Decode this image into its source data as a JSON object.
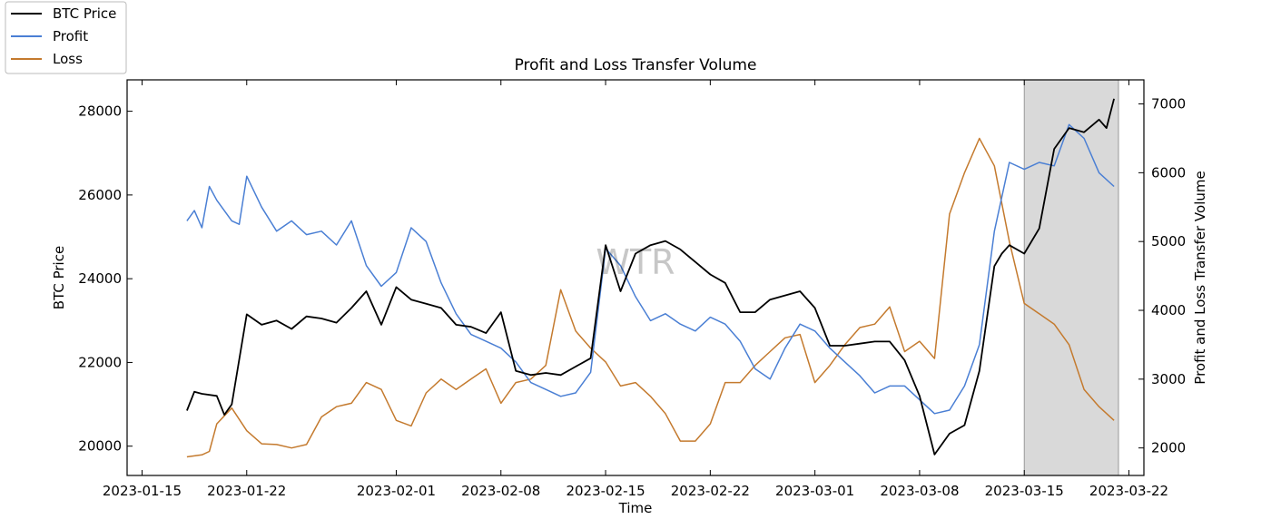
{
  "chart_data": {
    "type": "line",
    "title": "Profit and Loss Transfer Volume",
    "xlabel": "Time",
    "ylabel_left": "BTC Price",
    "ylabel_right": "Profit and Loss Transfer Volume",
    "watermark": "WTR",
    "x_range": [
      "2023-01-14",
      "2023-03-23"
    ],
    "ylim_left": [
      19300,
      28750
    ],
    "ylim_right": [
      1600,
      7350
    ],
    "yticks_left": [
      20000,
      22000,
      24000,
      26000,
      28000
    ],
    "yticks_right": [
      2000,
      3000,
      4000,
      5000,
      6000,
      7000
    ],
    "xticks": [
      "2023-01-15",
      "2023-01-22",
      "2023-02-01",
      "2023-02-08",
      "2023-02-15",
      "2023-02-22",
      "2023-03-01",
      "2023-03-08",
      "2023-03-15",
      "2023-03-22"
    ],
    "highlight_span": {
      "start": "2023-03-15",
      "end": "2023-03-21.3",
      "color": "#d9d9d9"
    },
    "legend_position": "top-left (outside)",
    "series": [
      {
        "name": "BTC Price",
        "axis": "left",
        "color": "#000000",
        "x": [
          "2023-01-18",
          "2023-01-18.5",
          "2023-01-19",
          "2023-01-20",
          "2023-01-20.5",
          "2023-01-21",
          "2023-01-22",
          "2023-01-23",
          "2023-01-24",
          "2023-01-25",
          "2023-01-26",
          "2023-01-27",
          "2023-01-28",
          "2023-01-29",
          "2023-01-30",
          "2023-01-31",
          "2023-02-01",
          "2023-02-02",
          "2023-02-03",
          "2023-02-04",
          "2023-02-05",
          "2023-02-06",
          "2023-02-07",
          "2023-02-08",
          "2023-02-09",
          "2023-02-10",
          "2023-02-11",
          "2023-02-12",
          "2023-02-13",
          "2023-02-14",
          "2023-02-15",
          "2023-02-16",
          "2023-02-17",
          "2023-02-18",
          "2023-02-19",
          "2023-02-20",
          "2023-02-21",
          "2023-02-22",
          "2023-02-23",
          "2023-02-24",
          "2023-02-25",
          "2023-02-26",
          "2023-02-27",
          "2023-02-28",
          "2023-03-01",
          "2023-03-02",
          "2023-03-03",
          "2023-03-04",
          "2023-03-05",
          "2023-03-06",
          "2023-03-07",
          "2023-03-08",
          "2023-03-09",
          "2023-03-10",
          "2023-03-11",
          "2023-03-12",
          "2023-03-13",
          "2023-03-13.5",
          "2023-03-14",
          "2023-03-15",
          "2023-03-16",
          "2023-03-17",
          "2023-03-18",
          "2023-03-19",
          "2023-03-20",
          "2023-03-20.5",
          "2023-03-21"
        ],
        "y": [
          20850,
          21300,
          21250,
          21200,
          20750,
          21000,
          23150,
          22900,
          23000,
          22800,
          23100,
          23050,
          22950,
          23300,
          23700,
          22900,
          23800,
          23500,
          23400,
          23300,
          22900,
          22850,
          22700,
          23200,
          21800,
          21700,
          21750,
          21700,
          21900,
          22100,
          24800,
          23700,
          24600,
          24800,
          24900,
          24700,
          24400,
          24100,
          23900,
          23200,
          23200,
          23500,
          23600,
          23700,
          23300,
          22400,
          22400,
          22450,
          22500,
          22500,
          22050,
          21200,
          19800,
          20300,
          20500,
          21800,
          24300,
          24600,
          24800,
          24600,
          25200,
          27100,
          27600,
          27500,
          27800,
          27600,
          28300
        ]
      },
      {
        "name": "Profit",
        "axis": "right",
        "color": "#4a7fd4",
        "x": [
          "2023-01-18",
          "2023-01-18.5",
          "2023-01-19",
          "2023-01-19.5",
          "2023-01-20",
          "2023-01-21",
          "2023-01-21.5",
          "2023-01-22",
          "2023-01-23",
          "2023-01-24",
          "2023-01-25",
          "2023-01-26",
          "2023-01-27",
          "2023-01-28",
          "2023-01-29",
          "2023-01-30",
          "2023-01-31",
          "2023-02-01",
          "2023-02-02",
          "2023-02-03",
          "2023-02-04",
          "2023-02-05",
          "2023-02-06",
          "2023-02-07",
          "2023-02-08",
          "2023-02-09",
          "2023-02-10",
          "2023-02-11",
          "2023-02-12",
          "2023-02-13",
          "2023-02-14",
          "2023-02-15",
          "2023-02-16",
          "2023-02-17",
          "2023-02-18",
          "2023-02-19",
          "2023-02-20",
          "2023-02-21",
          "2023-02-22",
          "2023-02-23",
          "2023-02-24",
          "2023-02-25",
          "2023-02-26",
          "2023-02-27",
          "2023-02-28",
          "2023-03-01",
          "2023-03-02",
          "2023-03-03",
          "2023-03-04",
          "2023-03-05",
          "2023-03-06",
          "2023-03-07",
          "2023-03-08",
          "2023-03-09",
          "2023-03-10",
          "2023-03-11",
          "2023-03-12",
          "2023-03-13",
          "2023-03-14",
          "2023-03-15",
          "2023-03-16",
          "2023-03-17",
          "2023-03-18",
          "2023-03-19",
          "2023-03-20",
          "2023-03-21"
        ],
        "y": [
          5300,
          5450,
          5200,
          5800,
          5600,
          5300,
          5250,
          5950,
          5500,
          5150,
          5300,
          5100,
          5150,
          4950,
          5300,
          4650,
          4350,
          4550,
          5200,
          5000,
          4400,
          3950,
          3650,
          3550,
          3450,
          3250,
          2950,
          2850,
          2750,
          2800,
          3100,
          4900,
          4650,
          4200,
          3850,
          3950,
          3800,
          3700,
          3900,
          3800,
          3550,
          3150,
          3000,
          3450,
          3800,
          3700,
          3450,
          3250,
          3050,
          2800,
          2900,
          2900,
          2700,
          2500,
          2550,
          2900,
          3500,
          5150,
          6150,
          6050,
          6150,
          6100,
          6700,
          6500,
          6000,
          5800
        ]
      },
      {
        "name": "Loss",
        "axis": "right",
        "color": "#c47a2e",
        "x": [
          "2023-01-18",
          "2023-01-19",
          "2023-01-19.5",
          "2023-01-20",
          "2023-01-21",
          "2023-01-22",
          "2023-01-23",
          "2023-01-24",
          "2023-01-25",
          "2023-01-26",
          "2023-01-27",
          "2023-01-28",
          "2023-01-29",
          "2023-01-30",
          "2023-01-31",
          "2023-02-01",
          "2023-02-02",
          "2023-02-03",
          "2023-02-04",
          "2023-02-05",
          "2023-02-06",
          "2023-02-07",
          "2023-02-08",
          "2023-02-09",
          "2023-02-10",
          "2023-02-11",
          "2023-02-12",
          "2023-02-13",
          "2023-02-14",
          "2023-02-15",
          "2023-02-16",
          "2023-02-17",
          "2023-02-18",
          "2023-02-19",
          "2023-02-20",
          "2023-02-21",
          "2023-02-22",
          "2023-02-23",
          "2023-02-24",
          "2023-02-25",
          "2023-02-26",
          "2023-02-27",
          "2023-02-28",
          "2023-03-01",
          "2023-03-02",
          "2023-03-03",
          "2023-03-04",
          "2023-03-05",
          "2023-03-06",
          "2023-03-07",
          "2023-03-08",
          "2023-03-09",
          "2023-03-10",
          "2023-03-11",
          "2023-03-12",
          "2023-03-13",
          "2023-03-14",
          "2023-03-15",
          "2023-03-16",
          "2023-03-17",
          "2023-03-18",
          "2023-03-19",
          "2023-03-20",
          "2023-03-21"
        ],
        "y": [
          1870,
          1900,
          1950,
          2350,
          2580,
          2250,
          2060,
          2050,
          2000,
          2050,
          2450,
          2600,
          2650,
          2950,
          2850,
          2400,
          2320,
          2800,
          3000,
          2850,
          3000,
          3150,
          2650,
          2950,
          3000,
          3200,
          4300,
          3700,
          3450,
          3250,
          2900,
          2950,
          2750,
          2500,
          2100,
          2100,
          2350,
          2950,
          2950,
          3200,
          3400,
          3600,
          3650,
          2950,
          3200,
          3500,
          3750,
          3800,
          4050,
          3400,
          3550,
          3300,
          5400,
          6000,
          6500,
          6100,
          5000,
          4100,
          3950,
          3800,
          3500,
          2850,
          2600,
          2400
        ]
      }
    ]
  }
}
